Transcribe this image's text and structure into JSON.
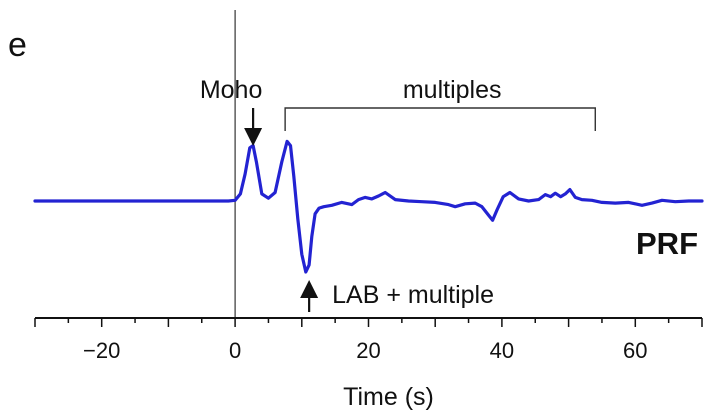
{
  "panel_label": "e",
  "chart_data": {
    "type": "line",
    "title": "",
    "xlabel": "Time (s)",
    "ylabel": "",
    "xlim": [
      -30,
      70
    ],
    "ylim": [
      -1.0,
      1.0
    ],
    "xticks": [
      -20,
      0,
      20,
      40,
      60
    ],
    "xtick_labels": [
      "−20",
      "0",
      "20",
      "40",
      "60"
    ],
    "grid": false,
    "legend": "none",
    "series": [
      {
        "name": "PRF",
        "color": "#2323d2",
        "x": [
          -30,
          -1,
          0,
          0.8,
          1.5,
          2.2,
          2.7,
          3.2,
          4,
          5,
          6,
          7,
          7.8,
          8.3,
          8.8,
          9.4,
          10,
          10.6,
          11.1,
          11.5,
          12,
          12.6,
          13.3,
          14.5,
          16,
          17.5,
          18.5,
          19.5,
          20.5,
          21.5,
          22.5,
          24,
          26,
          28,
          30,
          32,
          33,
          34.5,
          36,
          37,
          38,
          38.6,
          39.3,
          40.2,
          41.2,
          42.5,
          44,
          45.5,
          46.5,
          47.3,
          48,
          48.8,
          49.5,
          50.2,
          51,
          52,
          53.5,
          55,
          57,
          59,
          61,
          62.5,
          64,
          66,
          68,
          70
        ],
        "y": [
          0,
          0,
          0.01,
          0.1,
          0.38,
          0.75,
          0.78,
          0.55,
          0.1,
          0.04,
          0.12,
          0.55,
          0.84,
          0.78,
          0.35,
          -0.25,
          -0.75,
          -1.0,
          -0.9,
          -0.5,
          -0.18,
          -0.1,
          -0.08,
          -0.06,
          -0.02,
          -0.05,
          0.02,
          0.05,
          0.03,
          0.07,
          0.12,
          0.02,
          0.0,
          -0.01,
          -0.02,
          -0.05,
          -0.08,
          -0.04,
          -0.03,
          -0.08,
          -0.2,
          -0.27,
          -0.12,
          0.06,
          0.12,
          0.03,
          0.0,
          0.02,
          0.09,
          0.06,
          0.11,
          0.06,
          0.1,
          0.16,
          0.05,
          0.02,
          0.01,
          -0.02,
          -0.03,
          -0.02,
          -0.06,
          -0.03,
          0.01,
          -0.01,
          0.0,
          0.0
        ]
      }
    ],
    "annotations": [
      {
        "text": "Moho",
        "arrow": "down",
        "x": 2.7
      },
      {
        "text": "multiples",
        "bracket_x": [
          7.5,
          54
        ]
      },
      {
        "text": "LAB + multiple",
        "arrow": "up",
        "x": 11.1
      }
    ]
  }
}
